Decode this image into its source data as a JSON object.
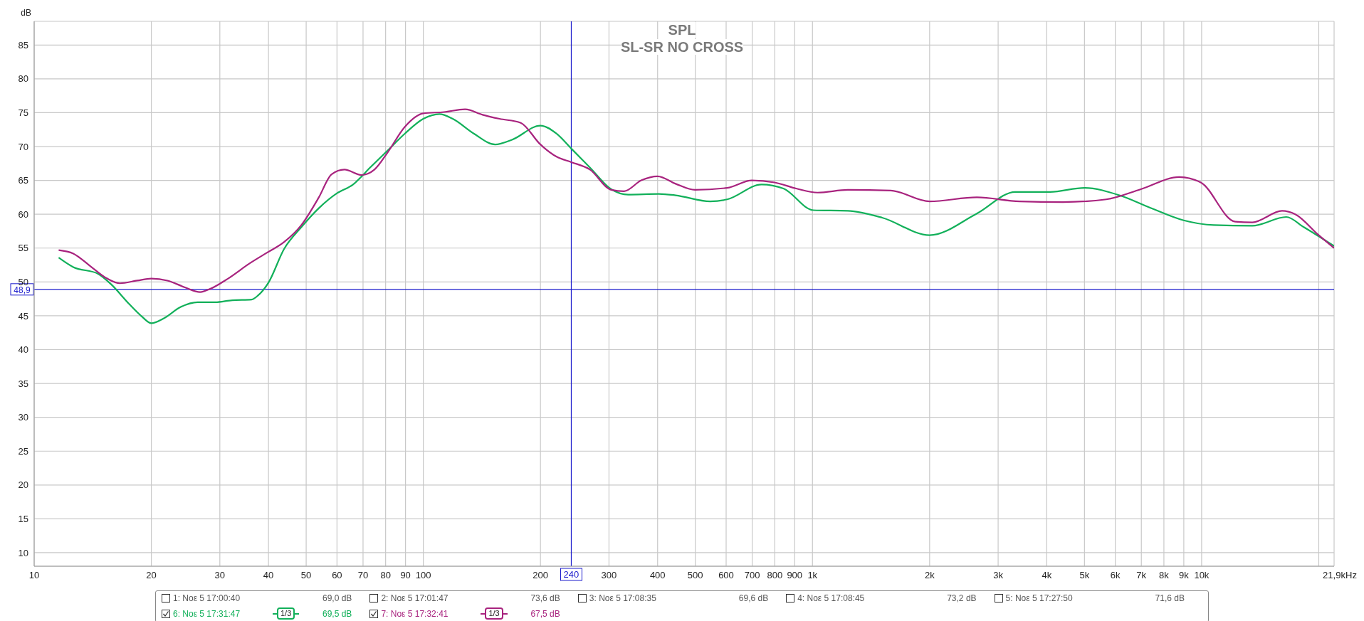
{
  "chart_data": {
    "type": "line",
    "title": "SPL",
    "subtitle": "SL-SR NO CROSS",
    "xlabel": "Hz",
    "ylabel": "dB",
    "log": "x",
    "grid": true,
    "legend": "bottom",
    "marker": "none",
    "line_style": "solid",
    "xlim": [
      10,
      21900
    ],
    "ylim": [
      8,
      88.5
    ],
    "xticks": [
      10,
      20,
      30,
      40,
      50,
      60,
      70,
      80,
      90,
      100,
      200,
      300,
      400,
      500,
      600,
      700,
      800,
      900,
      {
        "value": 1000,
        "label": "1k"
      },
      {
        "value": 2000,
        "label": "2k"
      },
      {
        "value": 3000,
        "label": "3k"
      },
      {
        "value": 4000,
        "label": "4k"
      },
      {
        "value": 5000,
        "label": "5k"
      },
      {
        "value": 6000,
        "label": "6k"
      },
      {
        "value": 7000,
        "label": "7k"
      },
      {
        "value": 8000,
        "label": "8k"
      },
      {
        "value": 9000,
        "label": "9k"
      },
      {
        "value": 10000,
        "label": "10k"
      },
      {
        "value": 20000,
        "label": null
      },
      {
        "value": 21900,
        "label": "21,9k"
      }
    ],
    "yticks": [
      10,
      15,
      20,
      25,
      30,
      35,
      40,
      45,
      50,
      55,
      60,
      65,
      70,
      75,
      80,
      85
    ],
    "ref_lines": [
      {
        "axis": "x",
        "value": 240,
        "label": "240",
        "color": "#1a1acc"
      },
      {
        "axis": "y",
        "value": 48.9,
        "label": "48,9",
        "color": "#1a1acc"
      }
    ],
    "series": [
      {
        "name": "6: Νοε 5 17:31:47",
        "color": "#12b05a",
        "x": [
          11.56,
          12.6,
          14.6,
          15.8,
          17.5,
          18.9,
          20,
          21.5,
          23.8,
          26.3,
          29.2,
          32.3,
          36.2,
          37.6,
          40,
          43.9,
          48.6,
          53.9,
          60,
          66,
          73,
          80.9,
          89.6,
          100,
          110,
          119,
          135,
          153,
          169,
          200,
          220,
          240,
          268,
          304,
          336,
          403,
          445,
          546,
          604,
          740,
          842,
          1005,
          1232,
          1510,
          2000,
          2645,
          3320,
          4080,
          5000,
          6150,
          7350,
          8990,
          10750,
          13500,
          16500,
          18300,
          21900
        ],
        "values": [
          53.6,
          52.2,
          51.2,
          49.6,
          46.8,
          44.9,
          43.9,
          44.6,
          46.3,
          47.0,
          47.0,
          47.3,
          47.4,
          48.0,
          49.9,
          54.9,
          58.1,
          60.9,
          63.1,
          64.4,
          66.9,
          69.4,
          71.9,
          74.1,
          74.8,
          74.1,
          71.9,
          70.3,
          71.0,
          73.1,
          71.9,
          69.7,
          66.9,
          63.7,
          62.9,
          63.0,
          62.8,
          61.9,
          62.2,
          64.4,
          63.8,
          60.6,
          60.5,
          59.5,
          56.9,
          60.1,
          63.3,
          63.3,
          63.9,
          62.8,
          61.0,
          59.1,
          58.4,
          58.3,
          59.6,
          58.1,
          55.3
        ]
      },
      {
        "name": "7: Νοε 5 17:32:41",
        "color": "#a8237e",
        "x": [
          11.56,
          12.6,
          13.9,
          15.4,
          16.6,
          18.4,
          20,
          22,
          24.4,
          26.7,
          28.4,
          31.5,
          35.7,
          39.6,
          43.9,
          48.6,
          53.9,
          58.1,
          62.7,
          69.4,
          74.9,
          80.9,
          89.6,
          100,
          113,
          128,
          142,
          157,
          178,
          200,
          220,
          240,
          268,
          304,
          328,
          363,
          400,
          445,
          499,
          604,
          698,
          799,
          908,
          1031,
          1232,
          1590,
          2000,
          2645,
          3405,
          4400,
          5690,
          6980,
          8760,
          9950,
          12200,
          13500,
          16100,
          17400,
          20000,
          21900
        ],
        "values": [
          54.7,
          54.2,
          52.4,
          50.5,
          49.8,
          50.2,
          50.5,
          50.2,
          49.2,
          48.5,
          49.0,
          50.5,
          52.7,
          54.3,
          55.9,
          58.4,
          62.5,
          65.9,
          66.6,
          65.8,
          66.6,
          69.1,
          72.9,
          74.9,
          75.1,
          75.5,
          74.7,
          74.1,
          73.5,
          70.3,
          68.5,
          67.7,
          66.6,
          63.6,
          63.4,
          65.0,
          65.6,
          64.5,
          63.6,
          63.9,
          65.0,
          64.7,
          63.8,
          63.2,
          63.6,
          63.5,
          61.9,
          62.5,
          61.9,
          61.8,
          62.2,
          63.7,
          65.5,
          64.7,
          58.9,
          58.8,
          60.5,
          60.0,
          56.9,
          55.0
        ]
      }
    ],
    "annotations": [
      "1: Νοε 5 17:00:40",
      "69,0 dB",
      "2: Νοε 5 17:01:47",
      "73,6 dB",
      "3: Νοε 5 17:08:35",
      "69,6 dB",
      "4: Νοε 5 17:08:45",
      "73,2 dB",
      "5: Νοε 5 17:27:50",
      "71,6 dB",
      "1/3",
      "69,5 dB",
      "1/3",
      "67,5 dB"
    ]
  }
}
